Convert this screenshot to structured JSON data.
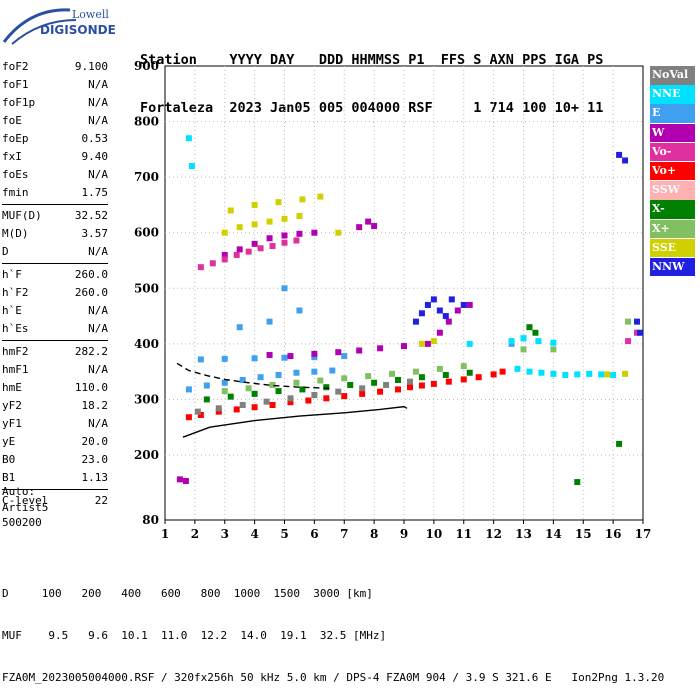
{
  "logo": {
    "line1": "Lowell",
    "line2": "DIGISONDE"
  },
  "header": {
    "labels": [
      "Station",
      "YYYY",
      "DAY",
      "DDD",
      "HHMMSS",
      "P1",
      "FFS",
      "S",
      "AXN",
      "PPS",
      "IGA",
      "PS"
    ],
    "values": [
      "Fortaleza",
      "2023",
      "Jan05",
      "005",
      "004000",
      "RSF",
      "",
      "1",
      "714",
      "100",
      "10+",
      "11"
    ]
  },
  "parameters": [
    [
      {
        "name": "foF2",
        "value": "9.100"
      },
      {
        "name": "foF1",
        "value": "N/A"
      },
      {
        "name": "foF1p",
        "value": "N/A"
      },
      {
        "name": "foE",
        "value": "N/A"
      },
      {
        "name": "foEp",
        "value": "0.53"
      },
      {
        "name": "fxI",
        "value": "9.40"
      },
      {
        "name": "foEs",
        "value": "N/A"
      },
      {
        "name": "fmin",
        "value": "1.75"
      }
    ],
    [
      {
        "name": "MUF(D)",
        "value": "32.52"
      },
      {
        "name": "M(D)",
        "value": "3.57"
      },
      {
        "name": "D",
        "value": "N/A"
      }
    ],
    [
      {
        "name": "h`F",
        "value": "260.0"
      },
      {
        "name": "h`F2",
        "value": "260.0"
      },
      {
        "name": "h`E",
        "value": "N/A"
      },
      {
        "name": "h`Es",
        "value": "N/A"
      }
    ],
    [
      {
        "name": "hmF2",
        "value": "282.2"
      },
      {
        "name": "hmF1",
        "value": "N/A"
      },
      {
        "name": "hmE",
        "value": "110.0"
      },
      {
        "name": "yF2",
        "value": "18.2"
      },
      {
        "name": "yF1",
        "value": "N/A"
      },
      {
        "name": "yE",
        "value": "20.0"
      },
      {
        "name": "B0",
        "value": "23.0"
      },
      {
        "name": "B1",
        "value": "1.13"
      }
    ],
    [
      {
        "name": "C-level",
        "value": "22"
      }
    ]
  ],
  "autoscaling": {
    "line1": "Auto:",
    "line2": "Artist5",
    "line3": "500200"
  },
  "legend": [
    {
      "label": "NoVal",
      "color": "#808080"
    },
    {
      "label": "NNE",
      "color": "#00e0ff"
    },
    {
      "label": "E",
      "color": "#40a0f0"
    },
    {
      "label": "W",
      "color": "#b000b0"
    },
    {
      "label": "Vo-",
      "color": "#e030a0"
    },
    {
      "label": "Vo+",
      "color": "#ff0000"
    },
    {
      "label": "SSW",
      "color": "#ffb0b0"
    },
    {
      "label": "X-",
      "color": "#008000"
    },
    {
      "label": "X+",
      "color": "#80c060"
    },
    {
      "label": "SSE",
      "color": "#d0d000"
    },
    {
      "label": "NNW",
      "color": "#2020e0"
    }
  ],
  "chart_data": {
    "type": "scatter",
    "xlim": [
      1,
      17
    ],
    "ylim": [
      80,
      900
    ],
    "xticks": [
      "1",
      "2",
      "3",
      "4",
      "5",
      "6",
      "7",
      "8",
      "9",
      "10",
      "11",
      "12",
      "13",
      "14",
      "15",
      "16",
      "17"
    ],
    "yticks": [
      "900",
      "800",
      "700",
      "600",
      "500",
      "400",
      "300",
      "200",
      "80"
    ],
    "grid": true,
    "legend_position": "right",
    "series": [
      {
        "color": "#ff0000",
        "points": [
          [
            1.8,
            268
          ],
          [
            2.2,
            272
          ],
          [
            2.8,
            278
          ],
          [
            3.4,
            282
          ],
          [
            4.0,
            286
          ],
          [
            4.6,
            290
          ],
          [
            5.2,
            295
          ],
          [
            5.8,
            298
          ],
          [
            6.4,
            302
          ],
          [
            7.0,
            306
          ],
          [
            7.6,
            310
          ],
          [
            8.2,
            314
          ],
          [
            8.8,
            318
          ],
          [
            9.2,
            322
          ],
          [
            9.6,
            325
          ],
          [
            10.0,
            328
          ],
          [
            10.5,
            332
          ],
          [
            11.0,
            336
          ],
          [
            11.5,
            340
          ],
          [
            12.0,
            345
          ],
          [
            12.3,
            350
          ]
        ]
      },
      {
        "color": "#40a0f0",
        "points": [
          [
            1.8,
            318
          ],
          [
            2.4,
            325
          ],
          [
            3.0,
            330
          ],
          [
            3.6,
            335
          ],
          [
            4.2,
            340
          ],
          [
            4.8,
            344
          ],
          [
            5.4,
            348
          ],
          [
            6.0,
            350
          ],
          [
            6.6,
            352
          ],
          [
            2.2,
            372
          ],
          [
            3.0,
            373
          ],
          [
            4.0,
            374
          ],
          [
            5.0,
            375
          ],
          [
            6.0,
            376
          ],
          [
            7.0,
            378
          ],
          [
            3.5,
            430
          ],
          [
            4.5,
            440
          ],
          [
            5.5,
            460
          ],
          [
            5.0,
            500
          ],
          [
            12.6,
            400
          ],
          [
            13.0,
            410
          ]
        ]
      },
      {
        "color": "#00e0ff",
        "points": [
          [
            11.2,
            400
          ],
          [
            12.6,
            405
          ],
          [
            13.0,
            410
          ],
          [
            13.5,
            405
          ],
          [
            14.0,
            402
          ],
          [
            12.8,
            355
          ],
          [
            13.2,
            350
          ],
          [
            13.6,
            348
          ],
          [
            14.0,
            346
          ],
          [
            14.4,
            344
          ],
          [
            14.8,
            345
          ],
          [
            15.2,
            346
          ],
          [
            15.6,
            345
          ],
          [
            16.0,
            344
          ],
          [
            1.8,
            770
          ],
          [
            1.9,
            720
          ]
        ]
      },
      {
        "color": "#b000b0",
        "points": [
          [
            4.5,
            380
          ],
          [
            5.2,
            378
          ],
          [
            6.0,
            382
          ],
          [
            6.8,
            385
          ],
          [
            7.5,
            388
          ],
          [
            8.2,
            392
          ],
          [
            9.0,
            396
          ],
          [
            9.8,
            400
          ],
          [
            10.2,
            420
          ],
          [
            10.5,
            440
          ],
          [
            10.8,
            460
          ],
          [
            11.2,
            470
          ],
          [
            3.0,
            560
          ],
          [
            3.5,
            570
          ],
          [
            4.0,
            580
          ],
          [
            4.5,
            590
          ],
          [
            5.0,
            595
          ],
          [
            5.5,
            598
          ],
          [
            6.0,
            600
          ],
          [
            7.5,
            610
          ],
          [
            7.8,
            620
          ],
          [
            8.0,
            612
          ],
          [
            1.5,
            155
          ],
          [
            1.7,
            152
          ]
        ]
      },
      {
        "color": "#e030a0",
        "points": [
          [
            2.2,
            538
          ],
          [
            2.6,
            545
          ],
          [
            3.0,
            552
          ],
          [
            3.4,
            560
          ],
          [
            3.8,
            566
          ],
          [
            4.2,
            572
          ],
          [
            4.6,
            576
          ],
          [
            5.0,
            582
          ],
          [
            5.4,
            586
          ],
          [
            16.5,
            405
          ],
          [
            16.8,
            420
          ]
        ]
      },
      {
        "color": "#008000",
        "points": [
          [
            2.4,
            300
          ],
          [
            3.2,
            305
          ],
          [
            4.0,
            310
          ],
          [
            4.8,
            315
          ],
          [
            5.6,
            318
          ],
          [
            6.4,
            322
          ],
          [
            7.2,
            326
          ],
          [
            8.0,
            330
          ],
          [
            8.8,
            335
          ],
          [
            9.6,
            340
          ],
          [
            10.4,
            344
          ],
          [
            11.2,
            348
          ],
          [
            13.4,
            420
          ],
          [
            13.2,
            430
          ],
          [
            14.8,
            150
          ],
          [
            16.2,
            220
          ]
        ]
      },
      {
        "color": "#80c060",
        "points": [
          [
            3.0,
            315
          ],
          [
            3.8,
            320
          ],
          [
            4.6,
            326
          ],
          [
            5.4,
            330
          ],
          [
            6.2,
            334
          ],
          [
            7.0,
            338
          ],
          [
            7.8,
            342
          ],
          [
            8.6,
            346
          ],
          [
            9.4,
            350
          ],
          [
            10.2,
            355
          ],
          [
            11.0,
            360
          ],
          [
            13.0,
            390
          ],
          [
            14.0,
            390
          ],
          [
            16.5,
            440
          ]
        ]
      },
      {
        "color": "#d0d000",
        "points": [
          [
            3.0,
            600
          ],
          [
            3.5,
            610
          ],
          [
            4.0,
            615
          ],
          [
            4.5,
            620
          ],
          [
            5.0,
            625
          ],
          [
            5.5,
            630
          ],
          [
            3.2,
            640
          ],
          [
            4.0,
            650
          ],
          [
            4.8,
            655
          ],
          [
            5.6,
            660
          ],
          [
            6.2,
            665
          ],
          [
            6.8,
            600
          ],
          [
            9.6,
            400
          ],
          [
            10.0,
            405
          ],
          [
            15.8,
            345
          ],
          [
            16.4,
            346
          ]
        ]
      },
      {
        "color": "#2020e0",
        "points": [
          [
            9.4,
            440
          ],
          [
            9.6,
            455
          ],
          [
            9.8,
            470
          ],
          [
            10.0,
            480
          ],
          [
            10.2,
            460
          ],
          [
            10.4,
            450
          ],
          [
            10.6,
            480
          ],
          [
            11.0,
            470
          ],
          [
            16.2,
            740
          ],
          [
            16.4,
            730
          ],
          [
            16.8,
            440
          ],
          [
            16.9,
            420
          ]
        ]
      },
      {
        "color": "#808080",
        "points": [
          [
            2.1,
            278
          ],
          [
            2.8,
            284
          ],
          [
            3.6,
            290
          ],
          [
            4.4,
            296
          ],
          [
            5.2,
            302
          ],
          [
            6.0,
            308
          ],
          [
            6.8,
            314
          ],
          [
            7.6,
            320
          ],
          [
            8.4,
            326
          ],
          [
            9.2,
            332
          ]
        ]
      }
    ],
    "traces": [
      {
        "name": "ordinary trace",
        "points": [
          [
            1.6,
            232
          ],
          [
            2.5,
            250
          ],
          [
            4.0,
            262
          ],
          [
            5.5,
            270
          ],
          [
            7.0,
            276
          ],
          [
            8.2,
            282
          ],
          [
            9.0,
            287
          ],
          [
            9.1,
            284
          ]
        ]
      },
      {
        "name": "dashed trace",
        "points": [
          [
            1.4,
            365
          ],
          [
            1.8,
            352
          ],
          [
            2.4,
            343
          ],
          [
            3.0,
            336
          ],
          [
            3.8,
            330
          ],
          [
            4.6,
            325
          ],
          [
            5.5,
            322
          ],
          [
            6.5,
            320
          ]
        ]
      }
    ]
  },
  "footer": {
    "line1": "D     100   200   400   600   800  1000  1500  3000 [km]",
    "line2": "MUF    9.5   9.6  10.1  11.0  12.2  14.0  19.1  32.5 [MHz]",
    "line3": "FZA0M_2023005004000.RSF / 320fx256h 50 kHz 5.0 km / DPS-4 FZA0M 904 / 3.9 S 321.6 E   Ion2Png 1.3.20"
  }
}
